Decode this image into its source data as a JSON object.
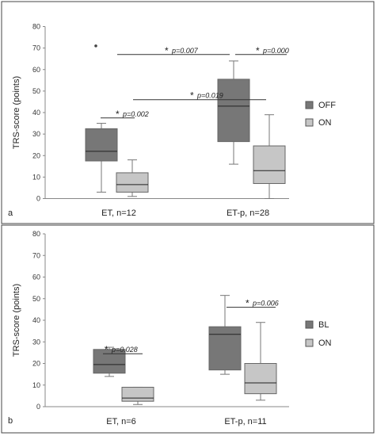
{
  "chart_data": [
    {
      "type": "box",
      "panel_label": "a",
      "ylabel": "TRS-score (points)",
      "ylim": [
        0,
        80
      ],
      "yticks": [
        0,
        10,
        20,
        30,
        40,
        50,
        60,
        70,
        80
      ],
      "categories": [
        "ET, n=12",
        "ET-p, n=28"
      ],
      "series": [
        {
          "name": "OFF",
          "color": "#777777",
          "boxes": [
            {
              "min": 3,
              "q1": 17.5,
              "median": 22,
              "q3": 32.5,
              "max": 35,
              "outliers": [
                71
              ]
            },
            {
              "min": 16,
              "q1": 26.5,
              "median": 43,
              "q3": 55.5,
              "max": 64,
              "outliers": []
            }
          ]
        },
        {
          "name": "ON",
          "color": "#c6c6c6",
          "boxes": [
            {
              "min": 1,
              "q1": 3,
              "median": 6.5,
              "q3": 12,
              "max": 18,
              "outliers": []
            },
            {
              "min": 0,
              "q1": 7,
              "median": 13,
              "q3": 24.5,
              "max": 39,
              "outliers": []
            }
          ]
        }
      ],
      "annotations": [
        {
          "star": "*",
          "text": "p=0.002",
          "y": 37.5
        },
        {
          "star": "*",
          "text": "p=0.007",
          "y": 67
        },
        {
          "star": "*",
          "text": "p=0.000",
          "y": 67
        },
        {
          "star": "*",
          "text": "p=0.019",
          "y": 46
        }
      ]
    },
    {
      "type": "box",
      "panel_label": "b",
      "ylabel": "TRS-score (points)",
      "ylim": [
        0,
        80
      ],
      "yticks": [
        0,
        10,
        20,
        30,
        40,
        50,
        60,
        70,
        80
      ],
      "categories": [
        "ET, n=6",
        "ET-p, n=11"
      ],
      "series": [
        {
          "name": "BL",
          "color": "#777777",
          "boxes": [
            {
              "min": 14,
              "q1": 15.5,
              "median": 19.5,
              "q3": 26.5,
              "max": 27.5,
              "outliers": []
            },
            {
              "min": 15,
              "q1": 17,
              "median": 33.5,
              "q3": 37,
              "max": 51.5,
              "outliers": []
            }
          ]
        },
        {
          "name": "ON",
          "color": "#c6c6c6",
          "boxes": [
            {
              "min": 1,
              "q1": 2.5,
              "median": 4,
              "q3": 9,
              "max": 9,
              "outliers": []
            },
            {
              "min": 3,
              "q1": 6,
              "median": 11,
              "q3": 20,
              "max": 39,
              "outliers": []
            }
          ]
        }
      ],
      "annotations": [
        {
          "star": "*",
          "text": "p=0.028",
          "y": 24.5
        },
        {
          "star": "*",
          "text": "p=0.006",
          "y": 46
        }
      ]
    }
  ]
}
